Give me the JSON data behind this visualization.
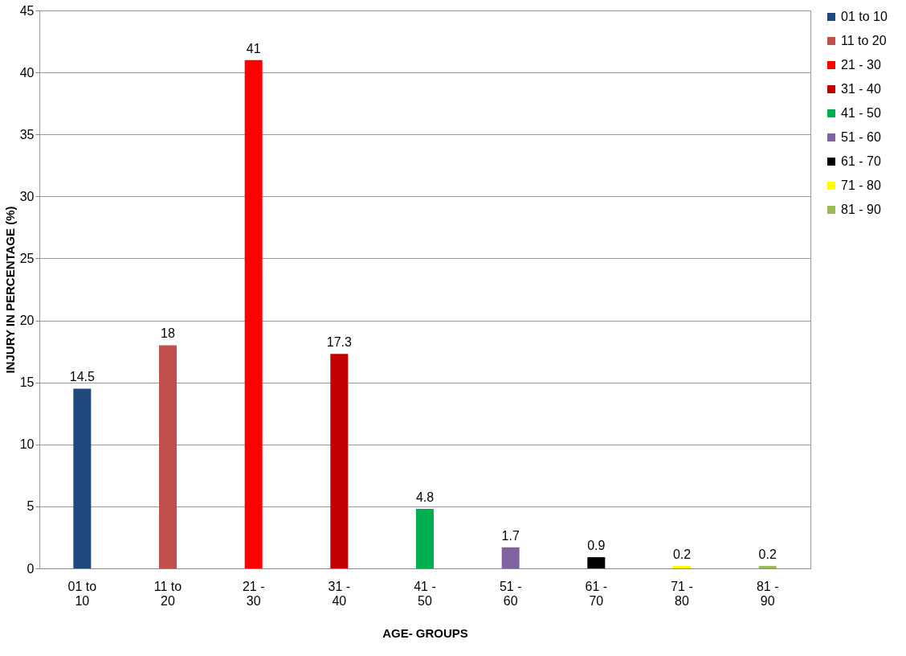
{
  "chart_data": {
    "type": "bar",
    "xlabel": "AGE- GROUPS",
    "ylabel": "INJURY IN PERCENTAGE (%)",
    "categories": [
      "01 to 10",
      "11 to 20",
      "21 - 30",
      "31 - 40",
      "41 - 50",
      "51 - 60",
      "61 - 70",
      "71 - 80",
      "81 - 90"
    ],
    "series": [
      {
        "name": "01 to 10",
        "color": "#1f497d",
        "values": [
          14.5,
          null,
          null,
          null,
          null,
          null,
          null,
          null,
          null
        ]
      },
      {
        "name": "11 to 20",
        "color": "#c0504d",
        "values": [
          null,
          18,
          null,
          null,
          null,
          null,
          null,
          null,
          null
        ]
      },
      {
        "name": "21 - 30",
        "color": "#ff0000",
        "values": [
          null,
          null,
          41,
          null,
          null,
          null,
          null,
          null,
          null
        ]
      },
      {
        "name": "31 - 40",
        "color": "#c00000",
        "values": [
          null,
          null,
          null,
          17.3,
          null,
          null,
          null,
          null,
          null
        ]
      },
      {
        "name": "41 - 50",
        "color": "#00b050",
        "values": [
          null,
          null,
          null,
          null,
          4.8,
          null,
          null,
          null,
          null
        ]
      },
      {
        "name": "51 - 60",
        "color": "#8064a2",
        "values": [
          null,
          null,
          null,
          null,
          null,
          1.7,
          null,
          null,
          null
        ]
      },
      {
        "name": "61 - 70",
        "color": "#000000",
        "values": [
          null,
          null,
          null,
          null,
          null,
          null,
          0.9,
          null,
          null
        ]
      },
      {
        "name": "71 - 80",
        "color": "#ffff00",
        "values": [
          null,
          null,
          null,
          null,
          null,
          null,
          null,
          0.2,
          null
        ]
      },
      {
        "name": "81 - 90",
        "color": "#9bbb59",
        "values": [
          null,
          null,
          null,
          null,
          null,
          null,
          null,
          null,
          0.2
        ]
      }
    ],
    "ylim": [
      0,
      45
    ],
    "yticks": [
      0,
      5,
      10,
      15,
      20,
      25,
      30,
      35,
      40,
      45
    ],
    "grid": "y",
    "legend": "right",
    "data_labels": true
  }
}
